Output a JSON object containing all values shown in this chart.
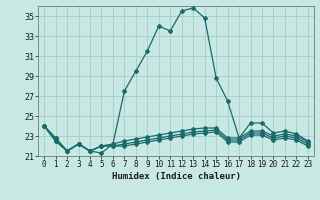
{
  "xlabel": "Humidex (Indice chaleur)",
  "bg_color": "#c8e8e4",
  "line_color": "#1a6b6b",
  "grid_color": "#a8ccca",
  "xlim": [
    -0.5,
    23.5
  ],
  "ylim": [
    21,
    36
  ],
  "yticks": [
    21,
    23,
    25,
    27,
    29,
    31,
    33,
    35
  ],
  "xticks": [
    0,
    1,
    2,
    3,
    4,
    5,
    6,
    7,
    8,
    9,
    10,
    11,
    12,
    13,
    14,
    15,
    16,
    17,
    18,
    19,
    20,
    21,
    22,
    23
  ],
  "series1_x": [
    0,
    1,
    2,
    3,
    4,
    5,
    6,
    7,
    8,
    9,
    10,
    11,
    12,
    13,
    14,
    15,
    16,
    17,
    18,
    19,
    20,
    21,
    22,
    23
  ],
  "series1_y": [
    24.0,
    22.8,
    21.5,
    22.2,
    21.5,
    21.3,
    22.2,
    27.5,
    29.5,
    31.5,
    34.0,
    33.5,
    35.5,
    35.8,
    34.8,
    28.8,
    26.5,
    22.8,
    24.3,
    24.3,
    23.3,
    23.5,
    23.2,
    22.5
  ],
  "series2_x": [
    0,
    1,
    2,
    3,
    4,
    5,
    6,
    7,
    8,
    9,
    10,
    11,
    12,
    13,
    14,
    15,
    16,
    17,
    18,
    19,
    20,
    21,
    22,
    23
  ],
  "series2_y": [
    24.0,
    22.8,
    21.5,
    22.2,
    21.5,
    22.0,
    22.2,
    22.5,
    22.7,
    22.9,
    23.1,
    23.3,
    23.5,
    23.7,
    23.8,
    23.8,
    22.8,
    22.8,
    23.5,
    23.5,
    23.0,
    23.2,
    23.0,
    22.4
  ],
  "series3_x": [
    0,
    1,
    2,
    3,
    4,
    5,
    6,
    7,
    8,
    9,
    10,
    11,
    12,
    13,
    14,
    15,
    16,
    17,
    18,
    19,
    20,
    21,
    22,
    23
  ],
  "series3_y": [
    24.0,
    22.5,
    21.5,
    22.2,
    21.5,
    22.0,
    22.0,
    22.2,
    22.4,
    22.6,
    22.8,
    23.0,
    23.2,
    23.4,
    23.5,
    23.6,
    22.6,
    22.6,
    23.3,
    23.3,
    22.8,
    23.0,
    22.8,
    22.2
  ],
  "series4_x": [
    0,
    1,
    2,
    3,
    4,
    5,
    6,
    7,
    8,
    9,
    10,
    11,
    12,
    13,
    14,
    15,
    16,
    17,
    18,
    19,
    20,
    21,
    22,
    23
  ],
  "series4_y": [
    24.0,
    22.5,
    21.5,
    22.2,
    21.5,
    22.0,
    22.0,
    22.0,
    22.2,
    22.4,
    22.6,
    22.8,
    23.0,
    23.2,
    23.3,
    23.4,
    22.4,
    22.4,
    23.1,
    23.1,
    22.6,
    22.8,
    22.6,
    22.0
  ],
  "marker": "D",
  "marker_size": 2,
  "linewidth": 0.9
}
